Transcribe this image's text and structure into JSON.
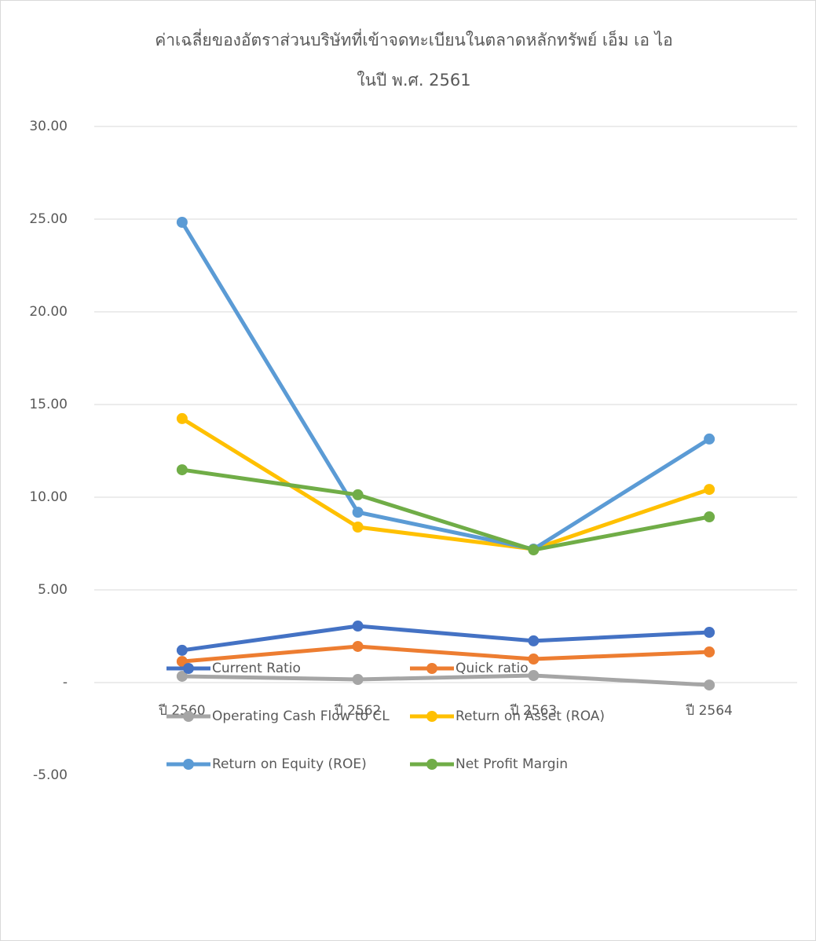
{
  "chart_data": {
    "type": "line",
    "title": [
      "ค่าเฉลี่ยของอัตราส่วนบริษัทที่เข้าจดทะเบียนในตลาดหลักทรัพย์ เอ็ม เอ ไอ",
      "ในปี พ.ศ. 2561"
    ],
    "categories": [
      "ปี 2560",
      "ปี 2562",
      "ปี 2563",
      "ปี 2564"
    ],
    "series": [
      {
        "name": "Current Ratio",
        "color": "#4472c4",
        "values": [
          1.74,
          3.05,
          2.25,
          2.71
        ]
      },
      {
        "name": "Quick ratio",
        "color": "#ed7d31",
        "values": [
          1.14,
          1.95,
          1.27,
          1.65
        ]
      },
      {
        "name": "Operating Cash Flow to CL",
        "color": "#a5a5a5",
        "values": [
          0.34,
          0.17,
          0.38,
          -0.13
        ]
      },
      {
        "name": "Return on Asset (ROA)",
        "color": "#ffc000",
        "values": [
          14.24,
          8.39,
          7.2,
          10.42
        ]
      },
      {
        "name": "Return on Equity (ROE)",
        "color": "#5b9bd5",
        "values": [
          24.83,
          9.19,
          7.2,
          13.14
        ]
      },
      {
        "name": "Net Profit Margin",
        "color": "#70ad47",
        "values": [
          11.48,
          10.13,
          7.16,
          8.94
        ]
      }
    ],
    "ylim": [
      -5,
      30
    ],
    "yticks": [
      {
        "value": -5,
        "label": "-5.00"
      },
      {
        "value": 0,
        "label": "-"
      },
      {
        "value": 5,
        "label": "5.00"
      },
      {
        "value": 10,
        "label": "10.00"
      },
      {
        "value": 15,
        "label": "15.00"
      },
      {
        "value": 20,
        "label": "20.00"
      },
      {
        "value": 25,
        "label": "25.00"
      },
      {
        "value": 30,
        "label": "30.00"
      }
    ],
    "grid": true,
    "legend": "bottom"
  }
}
